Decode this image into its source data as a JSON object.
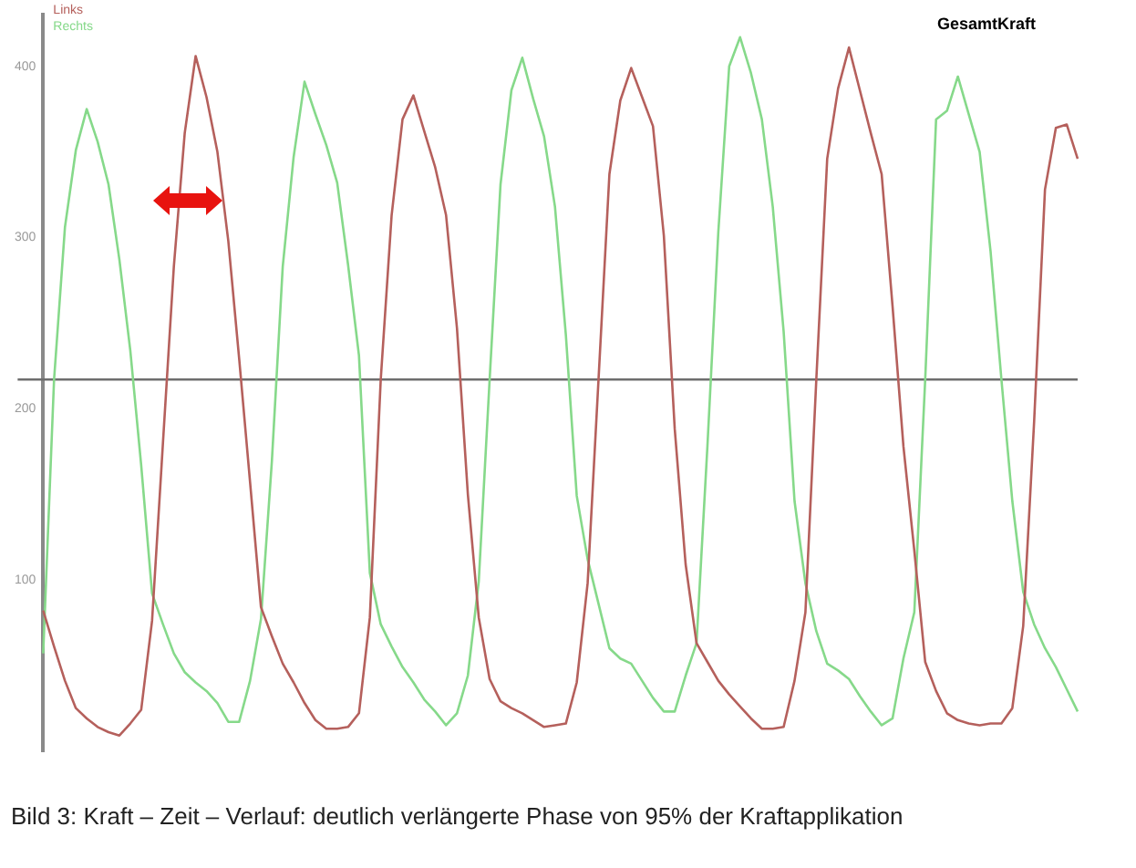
{
  "chart_data": {
    "type": "line",
    "title": "GesamtKraft",
    "annotations": [
      "Bild 3: Kraft – Zeit – Verlauf: deutlich verlängerte Phase von 95% der Kraftapplikation"
    ],
    "categories": [
      null,
      null,
      null,
      null,
      null,
      null,
      null,
      null,
      null,
      null,
      null,
      null,
      null,
      null,
      null,
      null,
      null,
      null,
      null,
      null,
      null,
      null,
      null,
      null,
      null,
      null,
      null,
      null,
      null,
      null,
      null,
      null,
      null,
      null,
      null,
      null,
      null,
      null,
      null,
      null,
      null,
      null,
      null,
      null,
      null,
      null,
      null,
      null,
      null,
      null,
      null,
      null,
      null,
      null,
      null,
      null,
      null,
      null,
      null,
      null,
      null,
      null,
      null,
      null,
      null,
      null,
      null,
      null,
      null,
      null,
      null,
      null,
      null,
      null,
      null,
      null,
      null,
      null,
      null,
      null,
      null,
      null,
      null,
      null,
      null,
      null,
      null,
      null,
      null,
      null,
      null,
      null,
      null,
      null,
      null,
      null
    ],
    "series": [
      {
        "name": "Links",
        "color": "#b5605c",
        "values": [
          82,
          61,
          41,
          25,
          19,
          14,
          11,
          9,
          16,
          24,
          76,
          180,
          283,
          361,
          406,
          382,
          350,
          298,
          229,
          157,
          84,
          67,
          51,
          40,
          28,
          18,
          13,
          13,
          14,
          22,
          78,
          217,
          313,
          369,
          383,
          362,
          341,
          313,
          247,
          150,
          78,
          42,
          29,
          25,
          22,
          18,
          14,
          15,
          16,
          40,
          98,
          217,
          337,
          380,
          399,
          382,
          365,
          301,
          188,
          109,
          63,
          52,
          41,
          33,
          26,
          19,
          13,
          13,
          14,
          41,
          81,
          217,
          346,
          387,
          411,
          386,
          361,
          337,
          260,
          178,
          117,
          52,
          35,
          22,
          18,
          16,
          15,
          16,
          16,
          25,
          73,
          192,
          328,
          364,
          366,
          346
        ]
      },
      {
        "name": "Rechts",
        "color": "#86d98a",
        "values": [
          57,
          217,
          306,
          351,
          375,
          356,
          331,
          287,
          234,
          167,
          92,
          74,
          57,
          46,
          40,
          35,
          28,
          17,
          17,
          41,
          77,
          169,
          283,
          347,
          391,
          372,
          354,
          332,
          284,
          231,
          104,
          74,
          61,
          49,
          40,
          30,
          23,
          15,
          22,
          44,
          99,
          217,
          331,
          386,
          405,
          381,
          359,
          318,
          243,
          149,
          112,
          86,
          60,
          54,
          51,
          41,
          31,
          23,
          23,
          44,
          63,
          178,
          303,
          400,
          417,
          396,
          369,
          318,
          245,
          146,
          98,
          70,
          51,
          47,
          42,
          32,
          23,
          15,
          19,
          54,
          81,
          217,
          369,
          374,
          394,
          372,
          350,
          292,
          217,
          146,
          93,
          74,
          60,
          49,
          36,
          23
        ]
      }
    ],
    "ylim": [
      0,
      430
    ],
    "yticks": [
      100,
      200,
      300,
      400
    ],
    "grid": false,
    "legend": "top left",
    "marker": "none",
    "line_style": "solid",
    "ref_lines": [
      {
        "axis": "y",
        "value": 217,
        "color": "#6e6e6e"
      }
    ]
  }
}
